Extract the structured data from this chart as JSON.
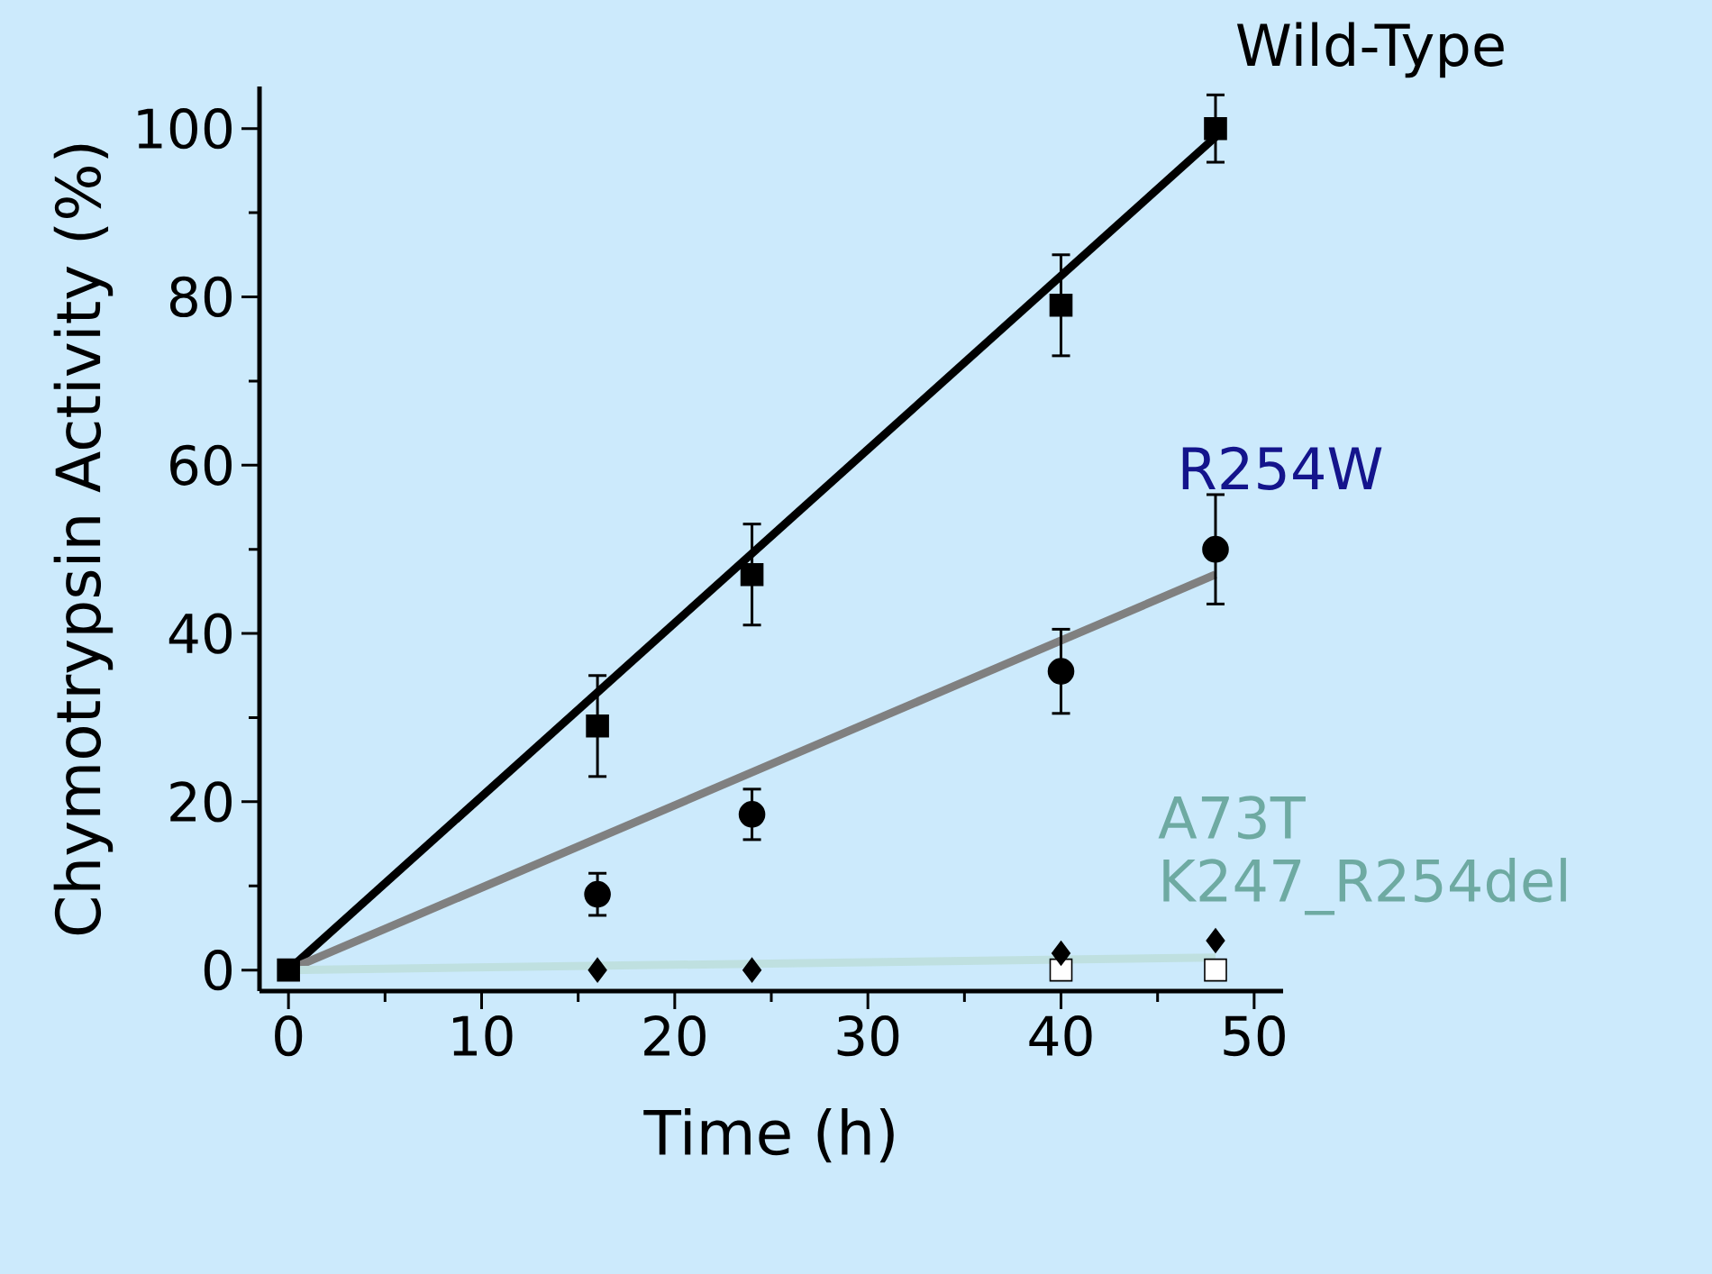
{
  "chart_data": {
    "type": "scatter",
    "xlabel": "Time (h)",
    "ylabel": "Chymotrypsin Activity (%)",
    "xlim": [
      -1.5,
      51.5
    ],
    "ylim": [
      -2.5,
      105
    ],
    "xticks": [
      0,
      {
        "value": 5,
        "label": null
      },
      10,
      {
        "value": 15,
        "label": null
      },
      20,
      {
        "value": 25,
        "label": null
      },
      30,
      {
        "value": 35,
        "label": null
      },
      40,
      {
        "value": 45,
        "label": null
      },
      50
    ],
    "yticks": [
      0,
      {
        "value": 10,
        "label": null
      },
      20,
      {
        "value": 30,
        "label": null
      },
      40,
      {
        "value": 50,
        "label": null
      },
      60,
      {
        "value": 70,
        "label": null
      },
      80,
      {
        "value": 90,
        "label": null
      },
      100
    ],
    "grid": false,
    "series": [
      {
        "type": "line",
        "x": [
          0,
          48
        ],
        "values": [
          0,
          99
        ],
        "color": "#000000",
        "marker": "none"
      },
      {
        "type": "line",
        "x": [
          0,
          48
        ],
        "values": [
          0,
          47
        ],
        "color": "#808080",
        "marker": "none"
      },
      {
        "type": "line",
        "x": [
          0,
          48
        ],
        "values": [
          0,
          1.5
        ],
        "color": "#bfe0e0",
        "marker": "none"
      },
      {
        "name": "Wild-Type",
        "x": [
          0,
          16,
          24,
          40,
          48
        ],
        "values": [
          0,
          29,
          47,
          79,
          100
        ],
        "errors": [
          null,
          6,
          6,
          6,
          4
        ],
        "color": "#000000",
        "marker": "square"
      },
      {
        "name": "R254W",
        "x": [
          16,
          24,
          40,
          48
        ],
        "values": [
          9,
          18.5,
          35.5,
          50
        ],
        "errors": [
          2.5,
          3,
          5,
          6.5
        ],
        "color": "#000000",
        "marker": "circle"
      },
      {
        "name": "A73T",
        "x": [
          16,
          24,
          40,
          48
        ],
        "values": [
          0,
          0,
          2,
          3.5
        ],
        "color": "#000000",
        "marker": "diamond"
      },
      {
        "name": "K247_R254del",
        "x": [
          40,
          48
        ],
        "values": [
          0,
          0
        ],
        "color": "#ffffff",
        "marker": "square"
      }
    ]
  }
}
